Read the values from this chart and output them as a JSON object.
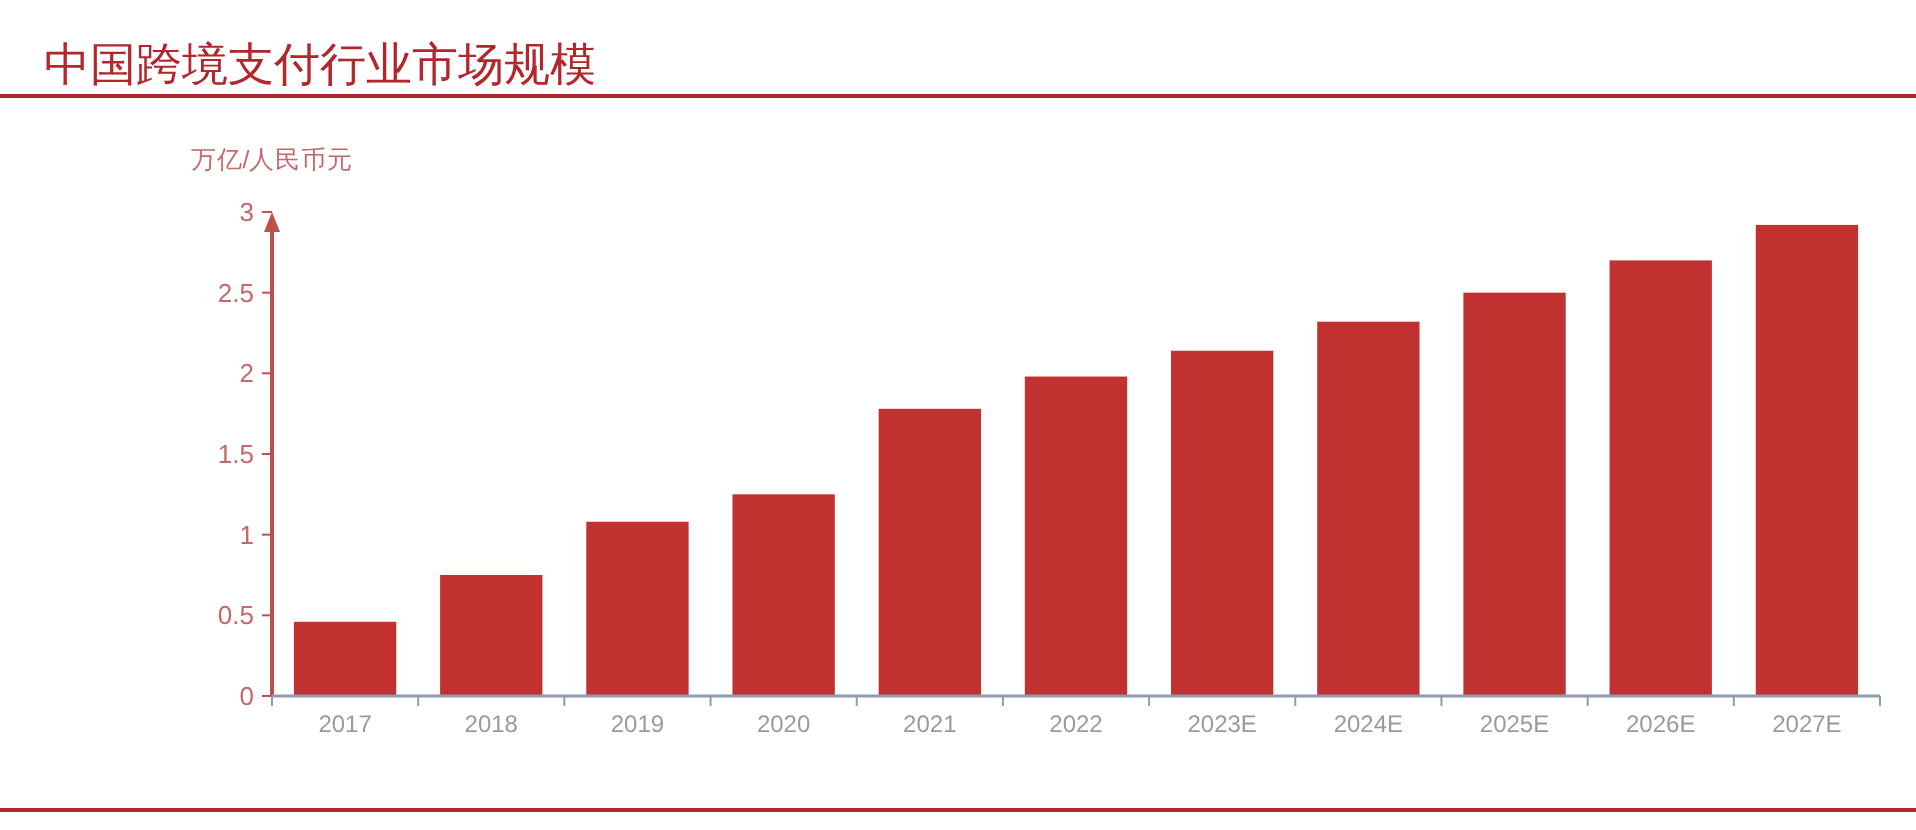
{
  "chart_data": {
    "type": "bar",
    "title": "中国跨境支付行业市场规模",
    "ylabel": "万亿/人民币元",
    "categories": [
      "2017",
      "2018",
      "2019",
      "2020",
      "2021",
      "2022",
      "2023E",
      "2024E",
      "2025E",
      "2026E",
      "2027E"
    ],
    "values": [
      0.46,
      0.75,
      1.08,
      1.25,
      1.78,
      1.98,
      2.14,
      2.32,
      2.5,
      2.7,
      2.92
    ],
    "color": "#c0312f",
    "ylim": [
      0,
      3
    ],
    "yticks": [
      0,
      0.5,
      1,
      1.5,
      2,
      2.5,
      3
    ]
  }
}
